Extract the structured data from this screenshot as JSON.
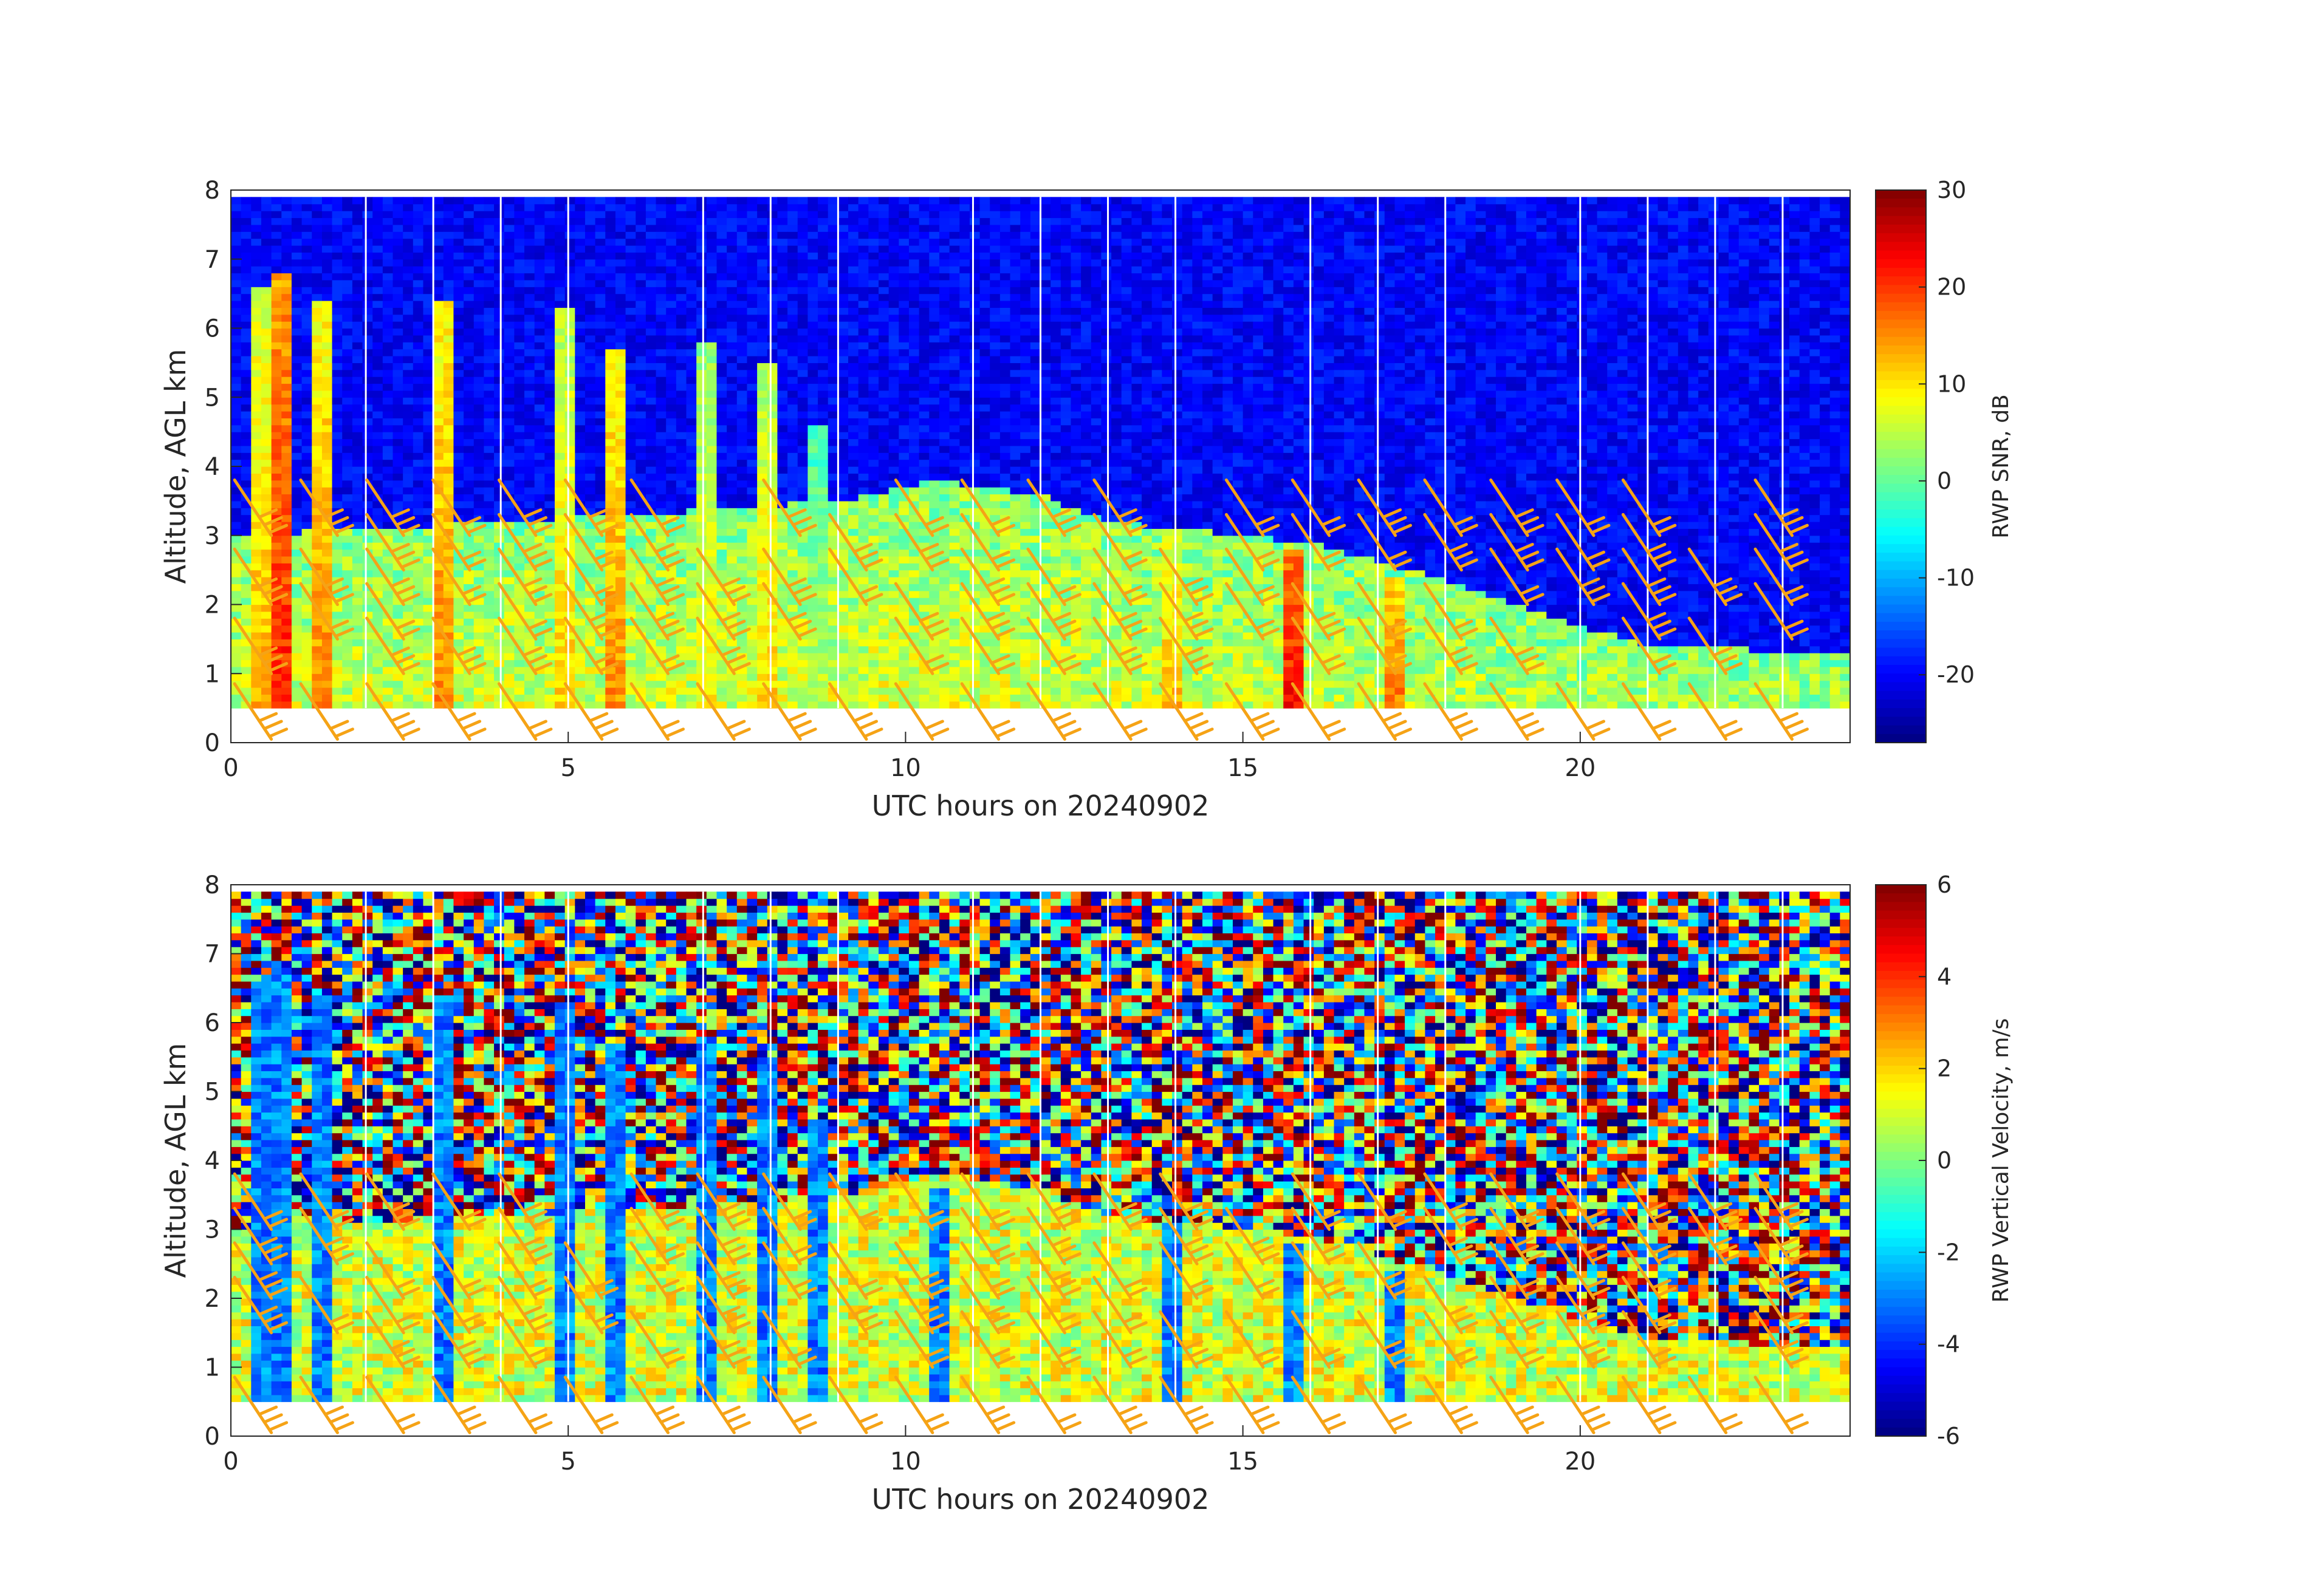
{
  "chart_data": [
    {
      "type": "heatmap",
      "panel": "top",
      "xlabel": "UTC hours on 20240902",
      "ylabel": "Altitude, AGL km",
      "xlim": [
        0,
        24
      ],
      "ylim": [
        0,
        8
      ],
      "x_ticks": [
        0,
        5,
        10,
        15,
        20
      ],
      "y_ticks": [
        0,
        1,
        2,
        3,
        4,
        5,
        6,
        7,
        8
      ],
      "data_range_km": [
        0.5,
        7.9
      ],
      "colorbar": {
        "label": "RWP SNR, dB",
        "range": [
          -27,
          30
        ],
        "ticks": [
          30,
          20,
          10,
          0,
          -10,
          -20
        ],
        "colormap": "jet"
      },
      "background_value": -20,
      "cloud_events": [
        {
          "t": 0.5,
          "top": 6.6,
          "peak": 14
        },
        {
          "t": 0.8,
          "top": 6.8,
          "peak": 22
        },
        {
          "t": 1.3,
          "top": 6.4,
          "peak": 16
        },
        {
          "t": 3.2,
          "top": 6.4,
          "peak": 16
        },
        {
          "t": 4.9,
          "top": 6.3,
          "peak": 12
        },
        {
          "t": 5.7,
          "top": 5.7,
          "peak": 16
        },
        {
          "t": 7.1,
          "top": 5.8,
          "peak": 10
        },
        {
          "t": 7.9,
          "top": 5.5,
          "peak": 12
        },
        {
          "t": 8.7,
          "top": 4.6,
          "peak": 6
        },
        {
          "t": 10.5,
          "top": 3.6,
          "peak": 8
        },
        {
          "t": 14.0,
          "top": 3.1,
          "peak": 14
        },
        {
          "t": 15.7,
          "top": 2.8,
          "peak": 24
        },
        {
          "t": 17.2,
          "top": 2.4,
          "peak": 18
        }
      ],
      "boundary_layer_top_km": [
        [
          0,
          3.0
        ],
        [
          6,
          3.3
        ],
        [
          9,
          3.5
        ],
        [
          10.5,
          3.8
        ],
        [
          12,
          3.6
        ],
        [
          13,
          3.2
        ],
        [
          16,
          2.9
        ],
        [
          17.5,
          2.5
        ],
        [
          19,
          2.0
        ],
        [
          21,
          1.4
        ],
        [
          24,
          1.3
        ]
      ],
      "wind_barbs": "orange barbs along 0–3 km, one column per ~0.5 h"
    },
    {
      "type": "heatmap",
      "panel": "bottom",
      "xlabel": "UTC hours on 20240902",
      "ylabel": "Altitude, AGL km",
      "xlim": [
        0,
        24
      ],
      "ylim": [
        0,
        8
      ],
      "x_ticks": [
        0,
        5,
        10,
        15,
        20
      ],
      "y_ticks": [
        0,
        1,
        2,
        3,
        4,
        5,
        6,
        7,
        8
      ],
      "data_range_km": [
        0.5,
        7.9
      ],
      "colorbar": {
        "label": "RWP Vertical Velocity, m/s",
        "range": [
          -6,
          6
        ],
        "ticks": [
          6,
          4,
          2,
          0,
          -2,
          -4,
          -6
        ],
        "colormap": "jet"
      },
      "background": "random noise above boundary layer",
      "boundary_layer_value_ms": 1.0,
      "cloud_events_value_ms": -3.0,
      "wind_barbs": "orange barbs along 0–3 km, one column per ~0.5 h"
    }
  ]
}
